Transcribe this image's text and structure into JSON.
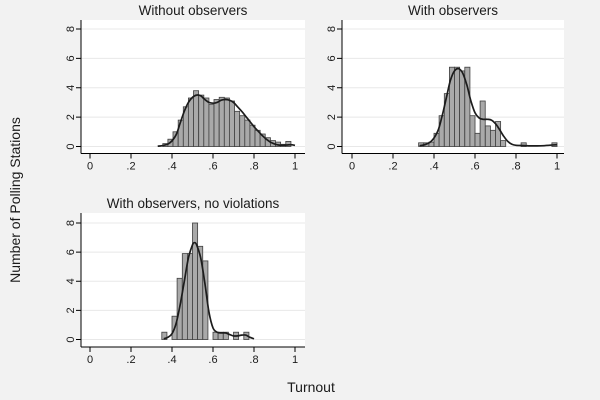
{
  "figure": {
    "xlabel": "Turnout",
    "ylabel": "Number of Polling Stations"
  },
  "colors": {
    "page_bg": "#f2f2f2",
    "plot_bg": "#ffffff",
    "gridline": "#e8e8e8",
    "bar_fill": "#a9a9a9",
    "bar_stroke": "#3f3f3f",
    "density_line": "#1c1c1c",
    "axis_line": "#000000",
    "text": "#1a1a1a"
  },
  "axes": {
    "x_range": [
      0,
      1
    ],
    "y_range": [
      0,
      8
    ],
    "x_tick_labels": [
      "0",
      ".2",
      ".4",
      ".6",
      ".8",
      "1"
    ],
    "x_tick_values": [
      0,
      0.2,
      0.4,
      0.6,
      0.8,
      1
    ],
    "y_tick_labels": [
      "0",
      "2",
      "4",
      "6",
      "8"
    ],
    "y_tick_values": [
      0,
      2,
      4,
      6,
      8
    ],
    "grid": true
  },
  "chart_data": [
    {
      "type": "histogram+density",
      "title": "Without observers",
      "bin_width": 0.025,
      "bin_start": 0.355,
      "bin_heights": [
        0.2,
        0.5,
        1.0,
        1.8,
        2.7,
        3.3,
        3.8,
        3.5,
        3.3,
        2.85,
        3.2,
        3.35,
        3.3,
        3.1,
        2.4,
        2.1,
        1.8,
        1.45,
        1.1,
        0.85,
        0.6,
        0.4,
        0.3,
        0.15,
        0.35
      ],
      "density": [
        [
          0.33,
          0.02
        ],
        [
          0.36,
          0.08
        ],
        [
          0.39,
          0.25
        ],
        [
          0.42,
          0.8
        ],
        [
          0.44,
          1.6
        ],
        [
          0.46,
          2.4
        ],
        [
          0.48,
          3.0
        ],
        [
          0.5,
          3.35
        ],
        [
          0.52,
          3.5
        ],
        [
          0.54,
          3.45
        ],
        [
          0.56,
          3.2
        ],
        [
          0.58,
          3.0
        ],
        [
          0.6,
          2.95
        ],
        [
          0.62,
          3.0
        ],
        [
          0.64,
          3.15
        ],
        [
          0.66,
          3.2
        ],
        [
          0.68,
          3.15
        ],
        [
          0.7,
          3.0
        ],
        [
          0.72,
          2.7
        ],
        [
          0.74,
          2.4
        ],
        [
          0.76,
          2.05
        ],
        [
          0.78,
          1.7
        ],
        [
          0.8,
          1.35
        ],
        [
          0.82,
          1.05
        ],
        [
          0.84,
          0.75
        ],
        [
          0.86,
          0.5
        ],
        [
          0.88,
          0.3
        ],
        [
          0.9,
          0.18
        ],
        [
          0.92,
          0.1
        ],
        [
          0.94,
          0.08
        ],
        [
          0.96,
          0.1
        ],
        [
          0.98,
          0.12
        ],
        [
          1.0,
          0.08
        ]
      ]
    },
    {
      "type": "histogram+density",
      "title": "With observers",
      "bin_width": 0.025,
      "bin_start": 0.325,
      "bin_heights": [
        0.25,
        0.25,
        0.3,
        0.9,
        2.1,
        3.6,
        5.4,
        5.4,
        5.15,
        5.4,
        2.1,
        0.9,
        3.1,
        1.4,
        1.1,
        1.7,
        0.4,
        0,
        0,
        0,
        0.25,
        0,
        0,
        0,
        0,
        0,
        0.25
      ],
      "density": [
        [
          0.33,
          0.05
        ],
        [
          0.36,
          0.15
        ],
        [
          0.39,
          0.4
        ],
        [
          0.42,
          1.1
        ],
        [
          0.44,
          2.1
        ],
        [
          0.46,
          3.3
        ],
        [
          0.48,
          4.5
        ],
        [
          0.5,
          5.15
        ],
        [
          0.52,
          5.3
        ],
        [
          0.54,
          5.0
        ],
        [
          0.56,
          4.2
        ],
        [
          0.58,
          3.1
        ],
        [
          0.6,
          2.3
        ],
        [
          0.62,
          1.95
        ],
        [
          0.64,
          1.85
        ],
        [
          0.66,
          1.85
        ],
        [
          0.68,
          1.8
        ],
        [
          0.7,
          1.55
        ],
        [
          0.72,
          1.15
        ],
        [
          0.74,
          0.7
        ],
        [
          0.76,
          0.35
        ],
        [
          0.78,
          0.15
        ],
        [
          0.8,
          0.08
        ],
        [
          0.84,
          0.06
        ],
        [
          0.88,
          0.04
        ],
        [
          0.92,
          0.05
        ],
        [
          0.96,
          0.08
        ],
        [
          1.0,
          0.12
        ]
      ]
    },
    {
      "type": "histogram+density",
      "title": "With observers, no violations",
      "bin_width": 0.025,
      "bin_start": 0.35,
      "bin_heights": [
        0.5,
        0,
        1.6,
        4.2,
        5.9,
        5.9,
        8,
        6.4,
        5.4,
        0,
        0.5,
        0.5,
        0.5,
        0,
        0.5,
        0,
        0.5
      ],
      "density": [
        [
          0.36,
          0.05
        ],
        [
          0.38,
          0.15
        ],
        [
          0.4,
          0.4
        ],
        [
          0.42,
          1.1
        ],
        [
          0.44,
          2.4
        ],
        [
          0.46,
          4.0
        ],
        [
          0.48,
          5.6
        ],
        [
          0.5,
          6.5
        ],
        [
          0.51,
          6.65
        ],
        [
          0.52,
          6.5
        ],
        [
          0.54,
          5.6
        ],
        [
          0.56,
          3.9
        ],
        [
          0.58,
          1.9
        ],
        [
          0.6,
          0.8
        ],
        [
          0.62,
          0.5
        ],
        [
          0.64,
          0.45
        ],
        [
          0.66,
          0.45
        ],
        [
          0.68,
          0.35
        ],
        [
          0.7,
          0.25
        ],
        [
          0.72,
          0.25
        ],
        [
          0.74,
          0.3
        ],
        [
          0.76,
          0.3
        ],
        [
          0.78,
          0.15
        ],
        [
          0.8,
          0.05
        ]
      ]
    }
  ]
}
